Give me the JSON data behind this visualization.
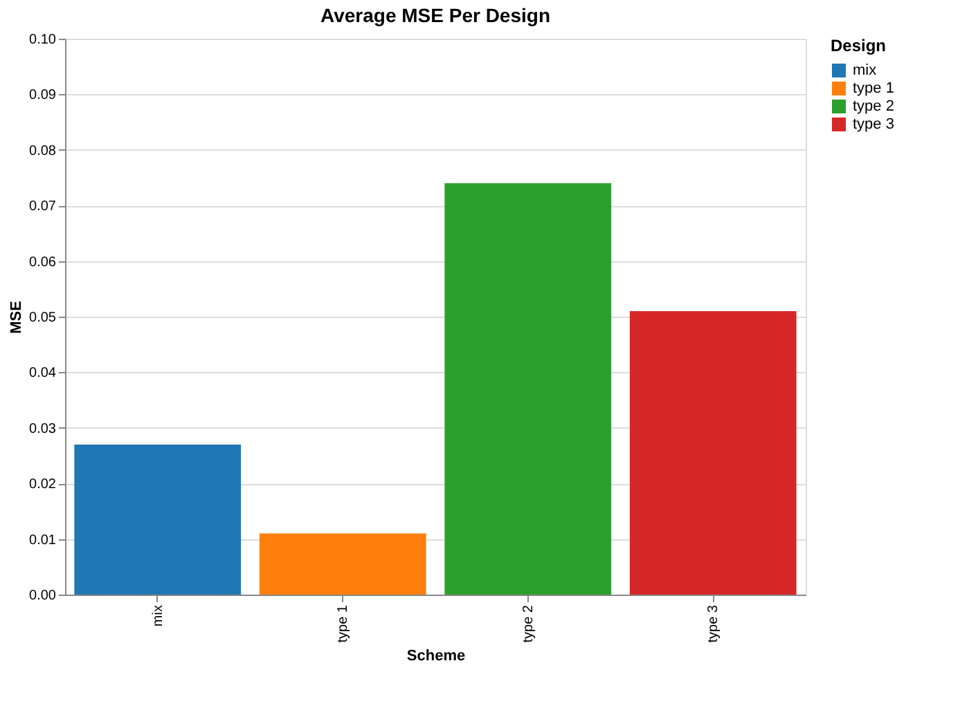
{
  "chart_data": {
    "type": "bar",
    "title": "Average MSE Per Design",
    "xlabel": "Scheme",
    "ylabel": "MSE",
    "legend_title": "Design",
    "categories": [
      "mix",
      "type 1",
      "type 2",
      "type 3"
    ],
    "stacked": true,
    "series": [
      {
        "name": "mix",
        "color": "#1f77b4",
        "values": [
          0.027,
          null,
          null,
          null
        ]
      },
      {
        "name": "type 1",
        "color": "#ff7f0e",
        "values": [
          null,
          0.011,
          null,
          null
        ]
      },
      {
        "name": "type 2",
        "color": "#2ca02c",
        "values": [
          null,
          null,
          0.074,
          null
        ]
      },
      {
        "name": "type 3",
        "color": "#d62728",
        "values": [
          null,
          null,
          null,
          0.051
        ]
      }
    ],
    "ylim": [
      0,
      0.1
    ],
    "yticks": [
      {
        "value": 0,
        "label": "0.00"
      },
      {
        "value": 0.01,
        "label": "0.01"
      },
      {
        "value": 0.02,
        "label": "0.02"
      },
      {
        "value": 0.03,
        "label": "0.03"
      },
      {
        "value": 0.04,
        "label": "0.04"
      },
      {
        "value": 0.05,
        "label": "0.05"
      },
      {
        "value": 0.06,
        "label": "0.06"
      },
      {
        "value": 0.07,
        "label": "0.07"
      },
      {
        "value": 0.08,
        "label": "0.08"
      },
      {
        "value": 0.09,
        "label": "0.09"
      },
      {
        "value": 0.1,
        "label": "0.10"
      }
    ],
    "grid": "y",
    "legend": "top right"
  }
}
